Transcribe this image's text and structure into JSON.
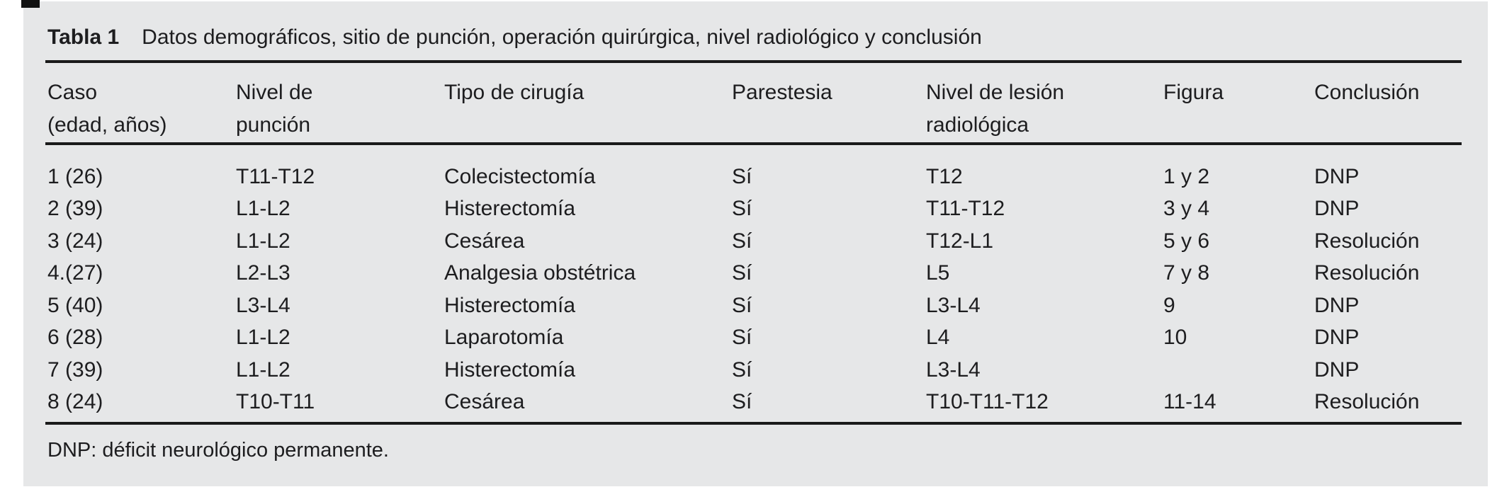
{
  "title": {
    "label": "Tabla 1",
    "text": "Datos demográficos, sitio de punción, operación quirúrgica, nivel radiológico y conclusión"
  },
  "table": {
    "columns": [
      {
        "id": "caso",
        "header_lines": [
          "Caso",
          "(edad, años)"
        ]
      },
      {
        "id": "nivel_puncion",
        "header_lines": [
          "Nivel de",
          "punción"
        ]
      },
      {
        "id": "tipo_cirugia",
        "header_lines": [
          "Tipo de cirugía"
        ]
      },
      {
        "id": "parestesia",
        "header_lines": [
          "Parestesia"
        ]
      },
      {
        "id": "nivel_lesion",
        "header_lines": [
          "Nivel de lesión",
          "radiológica"
        ]
      },
      {
        "id": "figura",
        "header_lines": [
          "Figura"
        ]
      },
      {
        "id": "conclusion",
        "header_lines": [
          "Conclusión"
        ]
      }
    ],
    "rows": [
      [
        "1 (26)",
        "T11-T12",
        "Colecistectomía",
        "Sí",
        "T12",
        "1 y 2",
        "DNP"
      ],
      [
        "2 (39)",
        "L1-L2",
        "Histerectomía",
        "Sí",
        "T11-T12",
        "3 y 4",
        "DNP"
      ],
      [
        "3 (24)",
        "L1-L2",
        "Cesárea",
        "Sí",
        "T12-L1",
        "5 y 6",
        "Resolución"
      ],
      [
        "4.(27)",
        "L2-L3",
        "Analgesia obstétrica",
        "Sí",
        "L5",
        "7 y 8",
        "Resolución"
      ],
      [
        "5 (40)",
        "L3-L4",
        "Histerectomía",
        "Sí",
        "L3-L4",
        "9",
        "DNP"
      ],
      [
        "6 (28)",
        "L1-L2",
        "Laparotomía",
        "Sí",
        "L4",
        "10",
        "DNP"
      ],
      [
        "7 (39)",
        "L1-L2",
        "Histerectomía",
        "Sí",
        "L3-L4",
        "",
        "DNP"
      ],
      [
        "8 (24)",
        "T10-T11",
        "Cesárea",
        "Sí",
        "T10-T11-T12",
        "11-14",
        "Resolución"
      ]
    ]
  },
  "footnote": "DNP: déficit neurológico permanente.",
  "colors": {
    "panel_bg": "#e6e7e8",
    "text": "#1d1d1f",
    "rule": "#1a1a1a"
  }
}
